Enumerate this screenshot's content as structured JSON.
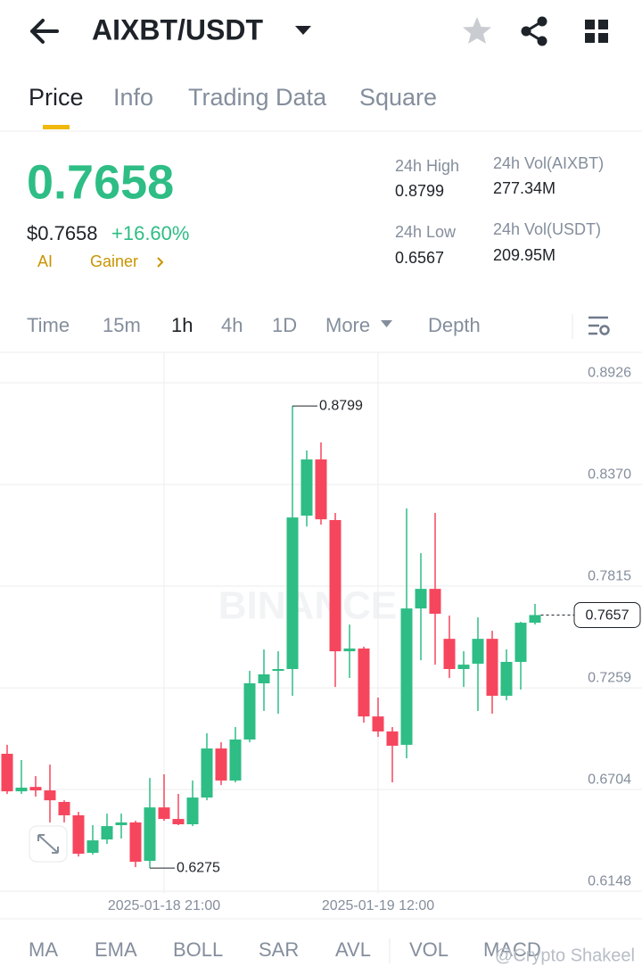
{
  "header": {
    "pair": "AIXBT/USDT"
  },
  "tabs": [
    "Price",
    "Info",
    "Trading Data",
    "Square"
  ],
  "price": {
    "last": "0.7658",
    "usd": "$0.7658",
    "change": "+16.60%",
    "tags": [
      "AI",
      "Gainer"
    ]
  },
  "stats": [
    {
      "label": "24h High",
      "value": "0.8799"
    },
    {
      "label": "24h Vol(AIXBT)",
      "value": "277.34M"
    },
    {
      "label": "24h Low",
      "value": "0.6567"
    },
    {
      "label": "24h Vol(USDT)",
      "value": "209.95M"
    }
  ],
  "intervals": [
    "Time",
    "15m",
    "1h",
    "4h",
    "1D",
    "More",
    "Depth"
  ],
  "indicators": [
    "MA",
    "EMA",
    "BOLL",
    "SAR",
    "AVL",
    "VOL",
    "MACD"
  ],
  "watermark": "@Crypto Shakeel",
  "chart_data": {
    "type": "candlestick",
    "categories": [
      null,
      null,
      null,
      null,
      null,
      null,
      null,
      null,
      null,
      null,
      null,
      "2025-01-18 21:00",
      null,
      null,
      null,
      null,
      null,
      null,
      null,
      null,
      null,
      null,
      null,
      null,
      null,
      null,
      "2025-01-19 12:00",
      null,
      null,
      null,
      null,
      null,
      null,
      null,
      null,
      null,
      null,
      null
    ],
    "open": [
      0.6899,
      0.6694,
      0.6718,
      0.6699,
      0.6636,
      0.6563,
      0.6358,
      0.6431,
      0.6509,
      0.6524,
      0.6314,
      0.6606,
      0.6543,
      0.6514,
      0.666,
      0.6928,
      0.6753,
      0.6977,
      0.7284,
      0.7352,
      0.7362,
      0.82,
      0.8507,
      0.8176,
      0.7459,
      0.7474,
      0.7103,
      0.7021,
      0.6948,
      0.7693,
      0.78,
      0.7527,
      0.7362,
      0.7391,
      0.7527,
      0.7216,
      0.7401,
      0.7615
    ],
    "high": [
      0.6948,
      0.6865,
      0.6777,
      0.684,
      0.6645,
      0.6582,
      0.6509,
      0.6572,
      0.6572,
      0.6533,
      0.6767,
      0.6787,
      0.668,
      0.6753,
      0.7011,
      0.6962,
      0.7045,
      0.7352,
      0.7469,
      0.7459,
      0.8799,
      0.8556,
      0.86,
      0.8215,
      0.7605,
      0.7484,
      0.7206,
      0.7045,
      0.8239,
      0.7995,
      0.8215,
      0.7654,
      0.7459,
      0.7644,
      0.7571,
      0.7469,
      0.762,
      0.7718
    ],
    "low": [
      0.668,
      0.668,
      0.6665,
      0.6524,
      0.6524,
      0.6338,
      0.6348,
      0.6407,
      0.6436,
      0.628,
      0.6275,
      0.6533,
      0.6509,
      0.6504,
      0.6645,
      0.6728,
      0.6743,
      0.6962,
      0.7133,
      0.7118,
      0.7216,
      0.8141,
      0.8151,
      0.7264,
      0.7313,
      0.7069,
      0.6991,
      0.6743,
      0.6874,
      0.741,
      0.7386,
      0.7313,
      0.7264,
      0.7133,
      0.7118,
      0.7191,
      0.725,
      0.7605
    ],
    "close": [
      0.6694,
      0.6714,
      0.6699,
      0.6645,
      0.6563,
      0.6353,
      0.6426,
      0.6504,
      0.6524,
      0.6309,
      0.6606,
      0.6543,
      0.6514,
      0.666,
      0.6928,
      0.6753,
      0.6977,
      0.7284,
      0.7333,
      0.7362,
      0.819,
      0.8507,
      0.818,
      0.7459,
      0.7474,
      0.7103,
      0.7021,
      0.6943,
      0.7693,
      0.78,
      0.7664,
      0.7362,
      0.7386,
      0.7527,
      0.7216,
      0.7401,
      0.7615,
      0.7657
    ],
    "up_color": "#2ebd85",
    "down_color": "#f6465d",
    "ylim": [
      0.6134,
      0.9092
    ],
    "yticks": [
      0.8926,
      {
        "value": 0.837,
        "label": "0.8370"
      },
      0.7815,
      0.7259,
      0.6704,
      0.6148
    ],
    "grid": true
  }
}
